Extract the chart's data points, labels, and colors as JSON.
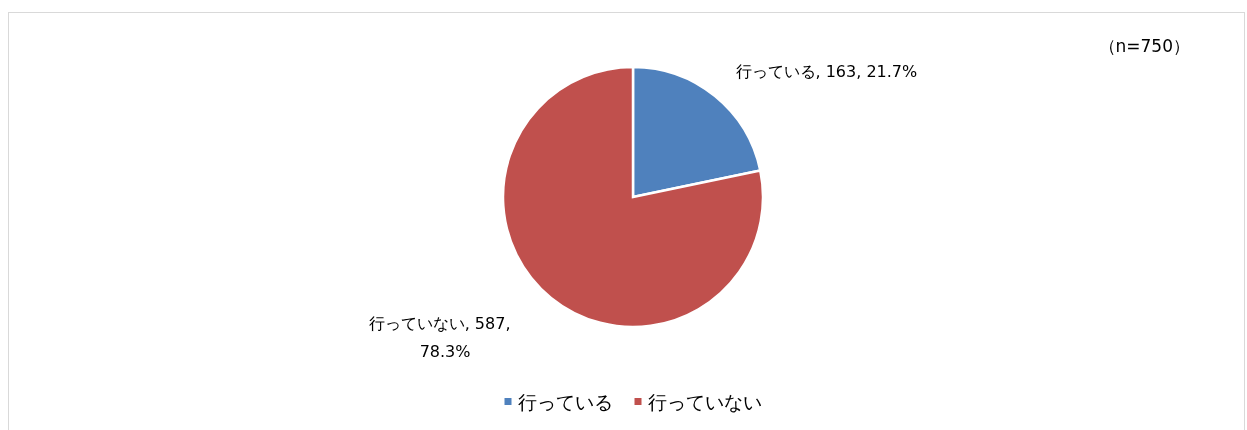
{
  "chart_data": {
    "type": "pie",
    "categories": [
      "行っている",
      "行っていない"
    ],
    "values": [
      163,
      587
    ],
    "colors": [
      "#4f81bd",
      "#c0504d"
    ],
    "value_labels": [
      "行っている, 163, 21.7%",
      "行っていない, 587, 78.3%"
    ],
    "annotations": [
      "（n=750）"
    ],
    "legend": "bottom"
  }
}
